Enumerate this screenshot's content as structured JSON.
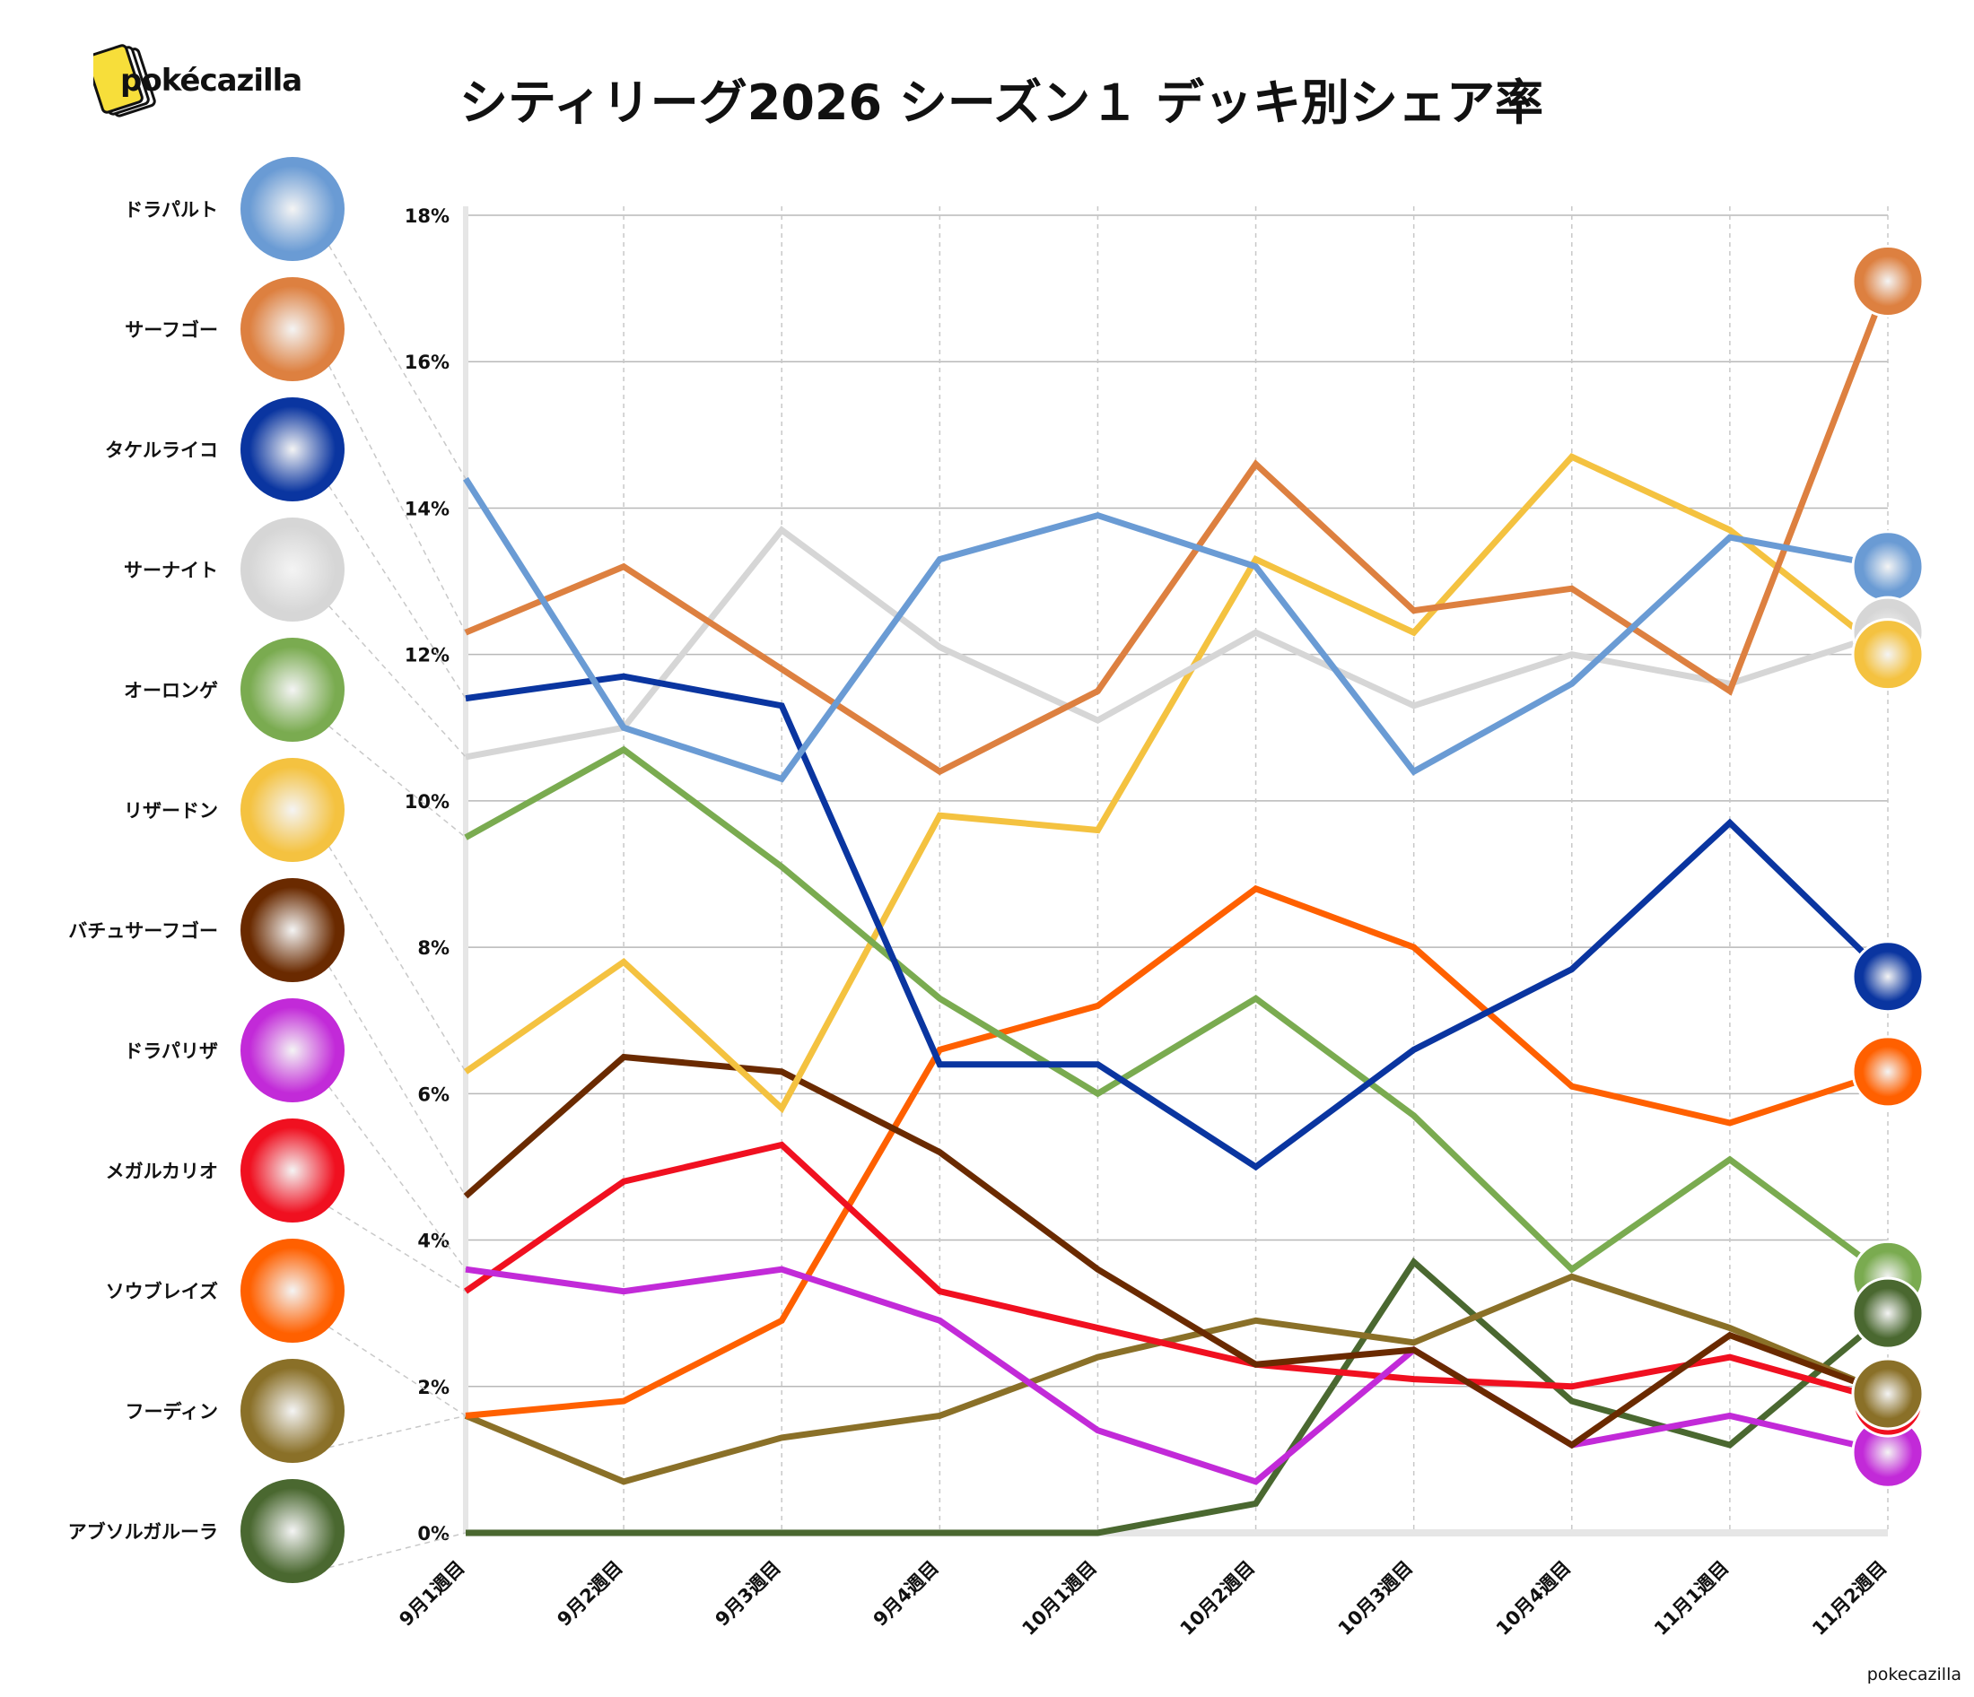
{
  "header": {
    "title": "シティリーグ2026 シーズン１ デッキ別シェア率",
    "logo_text": "pokécazilla"
  },
  "credit": "pokecazilla",
  "chart_data": {
    "type": "line",
    "title": "シティリーグ2026 シーズン１ デッキ別シェア率",
    "xlabel": "",
    "ylabel": "",
    "ylim": [
      0,
      18
    ],
    "yticks": [
      "0%",
      "2%",
      "4%",
      "6%",
      "8%",
      "10%",
      "12%",
      "14%",
      "16%",
      "18%"
    ],
    "grid": true,
    "legend": "left",
    "categories": [
      "9月1週目",
      "9月2週目",
      "9月3週目",
      "9月4週目",
      "10月1週目",
      "10月2週目",
      "10月3週目",
      "10月4週目",
      "11月1週目",
      "11月2週目"
    ],
    "series": [
      {
        "name": "ドラパルト",
        "color": "#6a9bd4",
        "values": [
          14.4,
          11.0,
          10.3,
          13.3,
          13.9,
          13.2,
          10.4,
          11.6,
          13.6,
          13.2
        ]
      },
      {
        "name": "サーフゴー",
        "color": "#dd8040",
        "values": [
          12.3,
          13.2,
          11.8,
          10.4,
          11.5,
          14.6,
          12.6,
          12.9,
          11.5,
          17.1
        ]
      },
      {
        "name": "タケルライコ",
        "color": "#0a35a0",
        "values": [
          11.4,
          11.7,
          11.3,
          6.4,
          6.4,
          5.0,
          6.6,
          7.7,
          9.7,
          7.6
        ]
      },
      {
        "name": "サーナイト",
        "color": "#d6d6d6",
        "values": [
          10.6,
          11.0,
          13.7,
          12.1,
          11.1,
          12.3,
          11.3,
          12.0,
          11.6,
          12.3
        ]
      },
      {
        "name": "オーロンゲ",
        "color": "#7aab50",
        "values": [
          9.5,
          10.7,
          9.1,
          7.3,
          6.0,
          7.3,
          5.7,
          3.6,
          5.1,
          3.5
        ]
      },
      {
        "name": "リザードン",
        "color": "#f4c240",
        "values": [
          6.3,
          7.8,
          5.8,
          9.8,
          9.6,
          13.3,
          12.3,
          14.7,
          13.7,
          12.0
        ]
      },
      {
        "name": "バチュサーフゴー",
        "color": "#6a2a00",
        "values": [
          4.6,
          6.5,
          6.3,
          5.2,
          3.6,
          2.3,
          2.5,
          1.2,
          2.7,
          1.9
        ]
      },
      {
        "name": "ドラパリザ",
        "color": "#c22ad8",
        "values": [
          3.6,
          3.3,
          3.6,
          2.9,
          1.4,
          0.7,
          2.5,
          1.2,
          1.6,
          1.1
        ]
      },
      {
        "name": "メガルカリオ",
        "color": "#f01020",
        "values": [
          3.3,
          4.8,
          5.3,
          3.3,
          2.8,
          2.3,
          2.1,
          2.0,
          2.4,
          1.8
        ]
      },
      {
        "name": "ソウブレイズ",
        "color": "#ff6000",
        "values": [
          1.6,
          1.8,
          2.9,
          6.6,
          7.2,
          8.8,
          8.0,
          6.1,
          5.6,
          6.3
        ]
      },
      {
        "name": "フーディン",
        "color": "#8a7028",
        "values": [
          1.6,
          0.7,
          1.3,
          1.6,
          2.4,
          2.9,
          2.6,
          3.5,
          2.8,
          1.9
        ]
      },
      {
        "name": "アブソルガルーラ",
        "color": "#4a6830",
        "values": [
          0,
          0,
          0,
          0,
          0,
          0.4,
          3.7,
          1.8,
          1.2,
          3.0
        ]
      }
    ]
  }
}
